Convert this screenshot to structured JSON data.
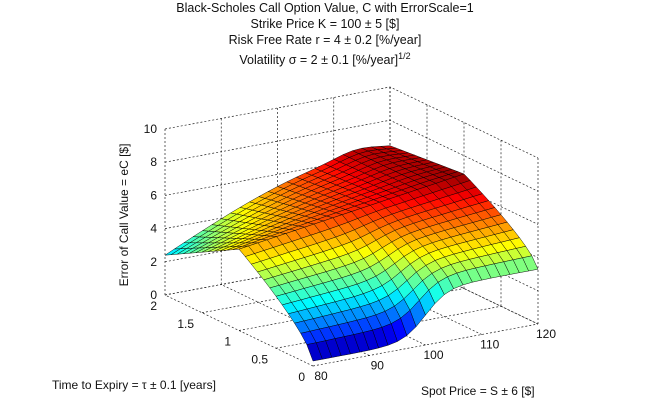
{
  "chart_data": {
    "type": "surface",
    "title_lines": {
      "line1": "Black-Scholes Call Option Value, C with ErrorScale=1",
      "line2": "Strike Price  K =  100 ± 5  [$]",
      "line3": "Risk Free Rate r = 4 ± 0.2  [%/year]",
      "line4_main": "Volatility σ = 2 ± 0.1  [%/year]",
      "line4_sup": "1/2"
    },
    "xlabel": "Spot Price = S ± 6  [$]",
    "ylabel": "Time to Expiry = τ ± 0.1  [years]",
    "zlabel": "Error of Call Value = eC  [$]",
    "xlim": [
      80,
      120
    ],
    "ylim": [
      0,
      2
    ],
    "zlim": [
      0,
      10
    ],
    "x_ticks": [
      "80",
      "90",
      "100",
      "110",
      "120"
    ],
    "y_ticks": [
      "0",
      "0.5",
      "1",
      "1.5",
      "2"
    ],
    "z_ticks": [
      "0",
      "2",
      "4",
      "6",
      "8",
      "10"
    ],
    "grid": true,
    "colormap": "jet",
    "grid_size": [
      25,
      25
    ],
    "corner_values": {
      "S80_t0": 0.3,
      "S120_t0": 3.0,
      "S80_t2": 2.4,
      "S120_t2": 6.6,
      "S120_t1": 6.8
    }
  }
}
